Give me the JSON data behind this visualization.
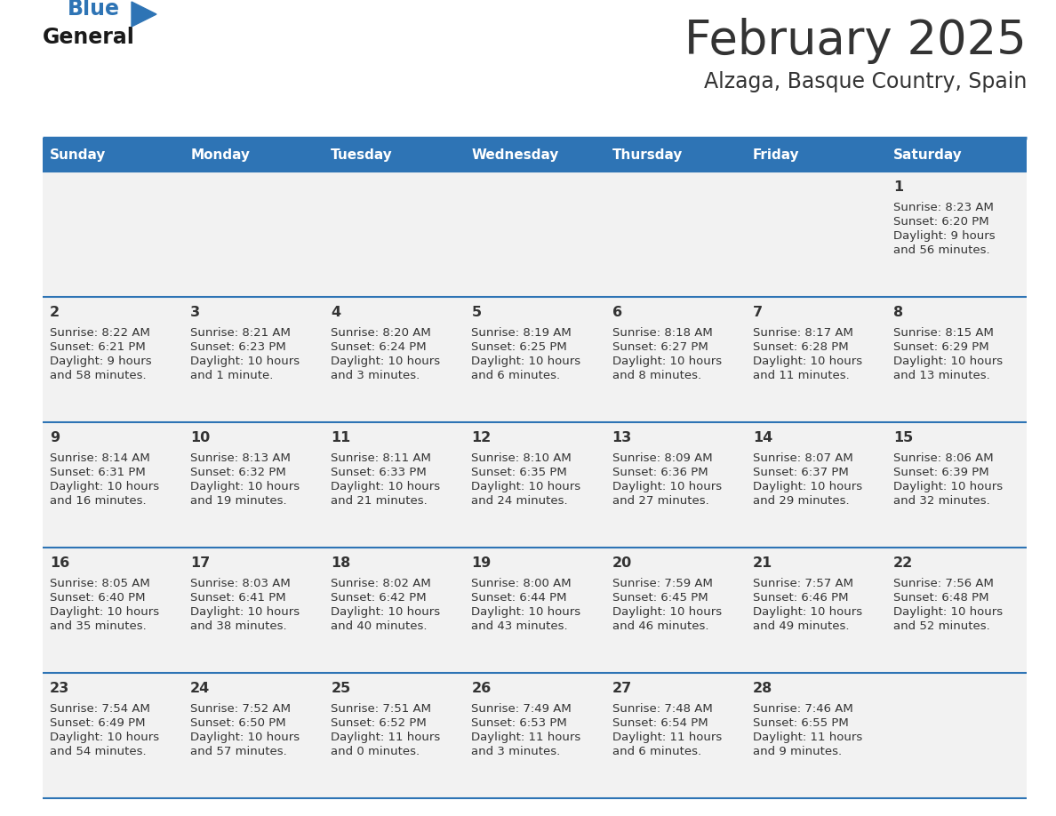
{
  "title": "February 2025",
  "subtitle": "Alzaga, Basque Country, Spain",
  "header_bg": "#2E74B5",
  "header_text_color": "#FFFFFF",
  "day_names": [
    "Sunday",
    "Monday",
    "Tuesday",
    "Wednesday",
    "Thursday",
    "Friday",
    "Saturday"
  ],
  "row_bg": "#F2F2F2",
  "grid_line_color": "#2E74B5",
  "text_color": "#333333",
  "title_color": "#333333",
  "days": [
    {
      "day": 1,
      "col": 6,
      "row": 0,
      "sunrise": "8:23 AM",
      "sunset": "6:20 PM",
      "daylight_h": "9 hours",
      "daylight_m": "and 56 minutes."
    },
    {
      "day": 2,
      "col": 0,
      "row": 1,
      "sunrise": "8:22 AM",
      "sunset": "6:21 PM",
      "daylight_h": "9 hours",
      "daylight_m": "and 58 minutes."
    },
    {
      "day": 3,
      "col": 1,
      "row": 1,
      "sunrise": "8:21 AM",
      "sunset": "6:23 PM",
      "daylight_h": "10 hours",
      "daylight_m": "and 1 minute."
    },
    {
      "day": 4,
      "col": 2,
      "row": 1,
      "sunrise": "8:20 AM",
      "sunset": "6:24 PM",
      "daylight_h": "10 hours",
      "daylight_m": "and 3 minutes."
    },
    {
      "day": 5,
      "col": 3,
      "row": 1,
      "sunrise": "8:19 AM",
      "sunset": "6:25 PM",
      "daylight_h": "10 hours",
      "daylight_m": "and 6 minutes."
    },
    {
      "day": 6,
      "col": 4,
      "row": 1,
      "sunrise": "8:18 AM",
      "sunset": "6:27 PM",
      "daylight_h": "10 hours",
      "daylight_m": "and 8 minutes."
    },
    {
      "day": 7,
      "col": 5,
      "row": 1,
      "sunrise": "8:17 AM",
      "sunset": "6:28 PM",
      "daylight_h": "10 hours",
      "daylight_m": "and 11 minutes."
    },
    {
      "day": 8,
      "col": 6,
      "row": 1,
      "sunrise": "8:15 AM",
      "sunset": "6:29 PM",
      "daylight_h": "10 hours",
      "daylight_m": "and 13 minutes."
    },
    {
      "day": 9,
      "col": 0,
      "row": 2,
      "sunrise": "8:14 AM",
      "sunset": "6:31 PM",
      "daylight_h": "10 hours",
      "daylight_m": "and 16 minutes."
    },
    {
      "day": 10,
      "col": 1,
      "row": 2,
      "sunrise": "8:13 AM",
      "sunset": "6:32 PM",
      "daylight_h": "10 hours",
      "daylight_m": "and 19 minutes."
    },
    {
      "day": 11,
      "col": 2,
      "row": 2,
      "sunrise": "8:11 AM",
      "sunset": "6:33 PM",
      "daylight_h": "10 hours",
      "daylight_m": "and 21 minutes."
    },
    {
      "day": 12,
      "col": 3,
      "row": 2,
      "sunrise": "8:10 AM",
      "sunset": "6:35 PM",
      "daylight_h": "10 hours",
      "daylight_m": "and 24 minutes."
    },
    {
      "day": 13,
      "col": 4,
      "row": 2,
      "sunrise": "8:09 AM",
      "sunset": "6:36 PM",
      "daylight_h": "10 hours",
      "daylight_m": "and 27 minutes."
    },
    {
      "day": 14,
      "col": 5,
      "row": 2,
      "sunrise": "8:07 AM",
      "sunset": "6:37 PM",
      "daylight_h": "10 hours",
      "daylight_m": "and 29 minutes."
    },
    {
      "day": 15,
      "col": 6,
      "row": 2,
      "sunrise": "8:06 AM",
      "sunset": "6:39 PM",
      "daylight_h": "10 hours",
      "daylight_m": "and 32 minutes."
    },
    {
      "day": 16,
      "col": 0,
      "row": 3,
      "sunrise": "8:05 AM",
      "sunset": "6:40 PM",
      "daylight_h": "10 hours",
      "daylight_m": "and 35 minutes."
    },
    {
      "day": 17,
      "col": 1,
      "row": 3,
      "sunrise": "8:03 AM",
      "sunset": "6:41 PM",
      "daylight_h": "10 hours",
      "daylight_m": "and 38 minutes."
    },
    {
      "day": 18,
      "col": 2,
      "row": 3,
      "sunrise": "8:02 AM",
      "sunset": "6:42 PM",
      "daylight_h": "10 hours",
      "daylight_m": "and 40 minutes."
    },
    {
      "day": 19,
      "col": 3,
      "row": 3,
      "sunrise": "8:00 AM",
      "sunset": "6:44 PM",
      "daylight_h": "10 hours",
      "daylight_m": "and 43 minutes."
    },
    {
      "day": 20,
      "col": 4,
      "row": 3,
      "sunrise": "7:59 AM",
      "sunset": "6:45 PM",
      "daylight_h": "10 hours",
      "daylight_m": "and 46 minutes."
    },
    {
      "day": 21,
      "col": 5,
      "row": 3,
      "sunrise": "7:57 AM",
      "sunset": "6:46 PM",
      "daylight_h": "10 hours",
      "daylight_m": "and 49 minutes."
    },
    {
      "day": 22,
      "col": 6,
      "row": 3,
      "sunrise": "7:56 AM",
      "sunset": "6:48 PM",
      "daylight_h": "10 hours",
      "daylight_m": "and 52 minutes."
    },
    {
      "day": 23,
      "col": 0,
      "row": 4,
      "sunrise": "7:54 AM",
      "sunset": "6:49 PM",
      "daylight_h": "10 hours",
      "daylight_m": "and 54 minutes."
    },
    {
      "day": 24,
      "col": 1,
      "row": 4,
      "sunrise": "7:52 AM",
      "sunset": "6:50 PM",
      "daylight_h": "10 hours",
      "daylight_m": "and 57 minutes."
    },
    {
      "day": 25,
      "col": 2,
      "row": 4,
      "sunrise": "7:51 AM",
      "sunset": "6:52 PM",
      "daylight_h": "11 hours",
      "daylight_m": "and 0 minutes."
    },
    {
      "day": 26,
      "col": 3,
      "row": 4,
      "sunrise": "7:49 AM",
      "sunset": "6:53 PM",
      "daylight_h": "11 hours",
      "daylight_m": "and 3 minutes."
    },
    {
      "day": 27,
      "col": 4,
      "row": 4,
      "sunrise": "7:48 AM",
      "sunset": "6:54 PM",
      "daylight_h": "11 hours",
      "daylight_m": "and 6 minutes."
    },
    {
      "day": 28,
      "col": 5,
      "row": 4,
      "sunrise": "7:46 AM",
      "sunset": "6:55 PM",
      "daylight_h": "11 hours",
      "daylight_m": "and 9 minutes."
    }
  ]
}
